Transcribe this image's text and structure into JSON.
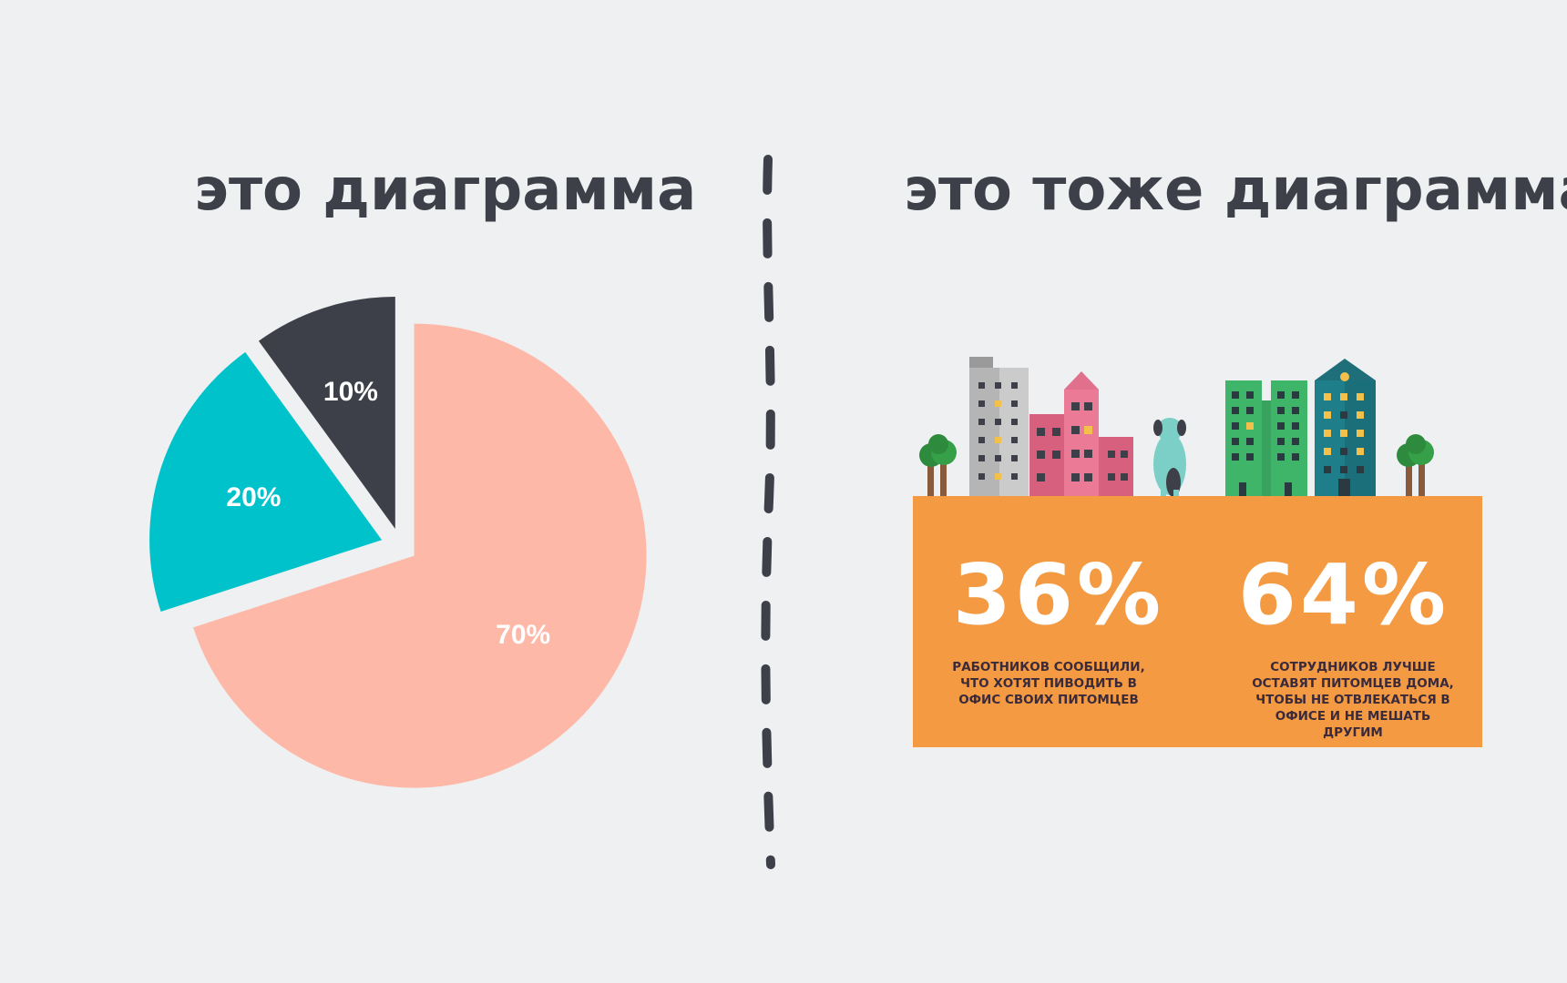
{
  "left_panel": {
    "title": "это диаграмма"
  },
  "right_panel": {
    "title": "это тоже диаграмма",
    "stat_1": {
      "value": "36%",
      "caption": "РАБОТНИКОВ СООБЩИЛИ,\nЧТО ХОТЯТ ПИВОДИТЬ В\nОФИС СВОИХ ПИТОМЦЕВ"
    },
    "stat_2": {
      "value": "64%",
      "caption": "СОТРУДНИКОВ ЛУЧШЕ\nОСТАВЯТ ПИТОМЦЕВ ДОМА,\nЧТОБЫ НЕ ОТВЛЕКАТЬСЯ В\nОФИСЕ И НЕ МЕШАТЬ ДРУГИМ"
    },
    "panel_color": "#f49a42"
  },
  "chart_data": [
    {
      "type": "pie",
      "title": "",
      "slices": [
        {
          "label": "70%",
          "value": 70,
          "color": "#fdb8a8",
          "label_color": "#ffffff"
        },
        {
          "label": "20%",
          "value": 20,
          "color": "#00c2cb",
          "label_color": "#ffffff"
        },
        {
          "label": "10%",
          "value": 10,
          "color": "#3d4049",
          "label_color": "#ffffff"
        }
      ],
      "exploded": true
    },
    {
      "type": "bar",
      "title": "",
      "categories": [
        "36%",
        "64%"
      ],
      "values": [
        36,
        64
      ]
    }
  ],
  "icons": {
    "divider": "dashed-line",
    "skyline": [
      "tree-icon",
      "building-icon",
      "dog-icon"
    ]
  }
}
